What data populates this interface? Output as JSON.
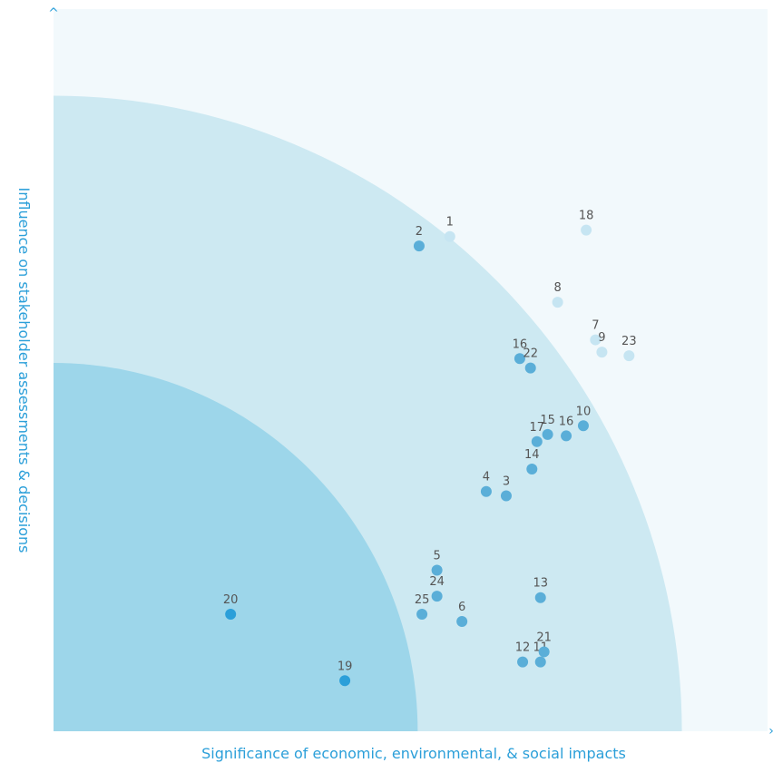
{
  "chart_data": {
    "type": "scatter",
    "xlabel": "Significance of economic, environmental, & social impacts",
    "ylabel": "Influence on stakeholder assessments & decisions",
    "xlim": [
      0,
      10
    ],
    "ylim": [
      0,
      10
    ],
    "grid": false,
    "zones": [
      {
        "name": "inner",
        "radius": 5.1,
        "color": "#9dd6ea"
      },
      {
        "name": "middle",
        "radius": 8.8,
        "color": "#cde9f2"
      }
    ],
    "points": [
      {
        "label": "1",
        "x": 5.55,
        "y": 6.85
      },
      {
        "label": "2",
        "x": 5.12,
        "y": 6.72
      },
      {
        "label": "3",
        "x": 6.34,
        "y": 3.26
      },
      {
        "label": "4",
        "x": 6.06,
        "y": 3.32
      },
      {
        "label": "5",
        "x": 5.37,
        "y": 2.23
      },
      {
        "label": "6",
        "x": 5.72,
        "y": 1.52
      },
      {
        "label": "7",
        "x": 7.59,
        "y": 5.42
      },
      {
        "label": "8",
        "x": 7.06,
        "y": 5.94
      },
      {
        "label": "9",
        "x": 7.68,
        "y": 5.25
      },
      {
        "label": "10",
        "x": 7.42,
        "y": 4.23
      },
      {
        "label": "11",
        "x": 6.82,
        "y": 0.96
      },
      {
        "label": "12",
        "x": 6.57,
        "y": 0.96
      },
      {
        "label": "13",
        "x": 6.82,
        "y": 1.85
      },
      {
        "label": "14",
        "x": 6.7,
        "y": 3.63
      },
      {
        "label": "15",
        "x": 6.92,
        "y": 4.11
      },
      {
        "label": "16",
        "x": 7.18,
        "y": 4.09
      },
      {
        "label": "16",
        "x": 6.53,
        "y": 5.16
      },
      {
        "label": "17",
        "x": 6.77,
        "y": 4.01
      },
      {
        "label": "18",
        "x": 7.46,
        "y": 6.94
      },
      {
        "label": "19",
        "x": 4.08,
        "y": 0.7
      },
      {
        "label": "20",
        "x": 2.48,
        "y": 1.62
      },
      {
        "label": "21",
        "x": 6.87,
        "y": 1.1
      },
      {
        "label": "22",
        "x": 6.68,
        "y": 5.03
      },
      {
        "label": "23",
        "x": 8.06,
        "y": 5.2
      },
      {
        "label": "24",
        "x": 5.37,
        "y": 1.87
      },
      {
        "label": "25",
        "x": 5.16,
        "y": 1.62
      }
    ],
    "colors": {
      "background": "#f2f9fc",
      "inner_points": "#2b9fd9",
      "middle_points": "#5aaed8",
      "outer_points": "#c6e5f2",
      "axis_text": "#2b9fd9",
      "label_text": "#555555"
    }
  }
}
